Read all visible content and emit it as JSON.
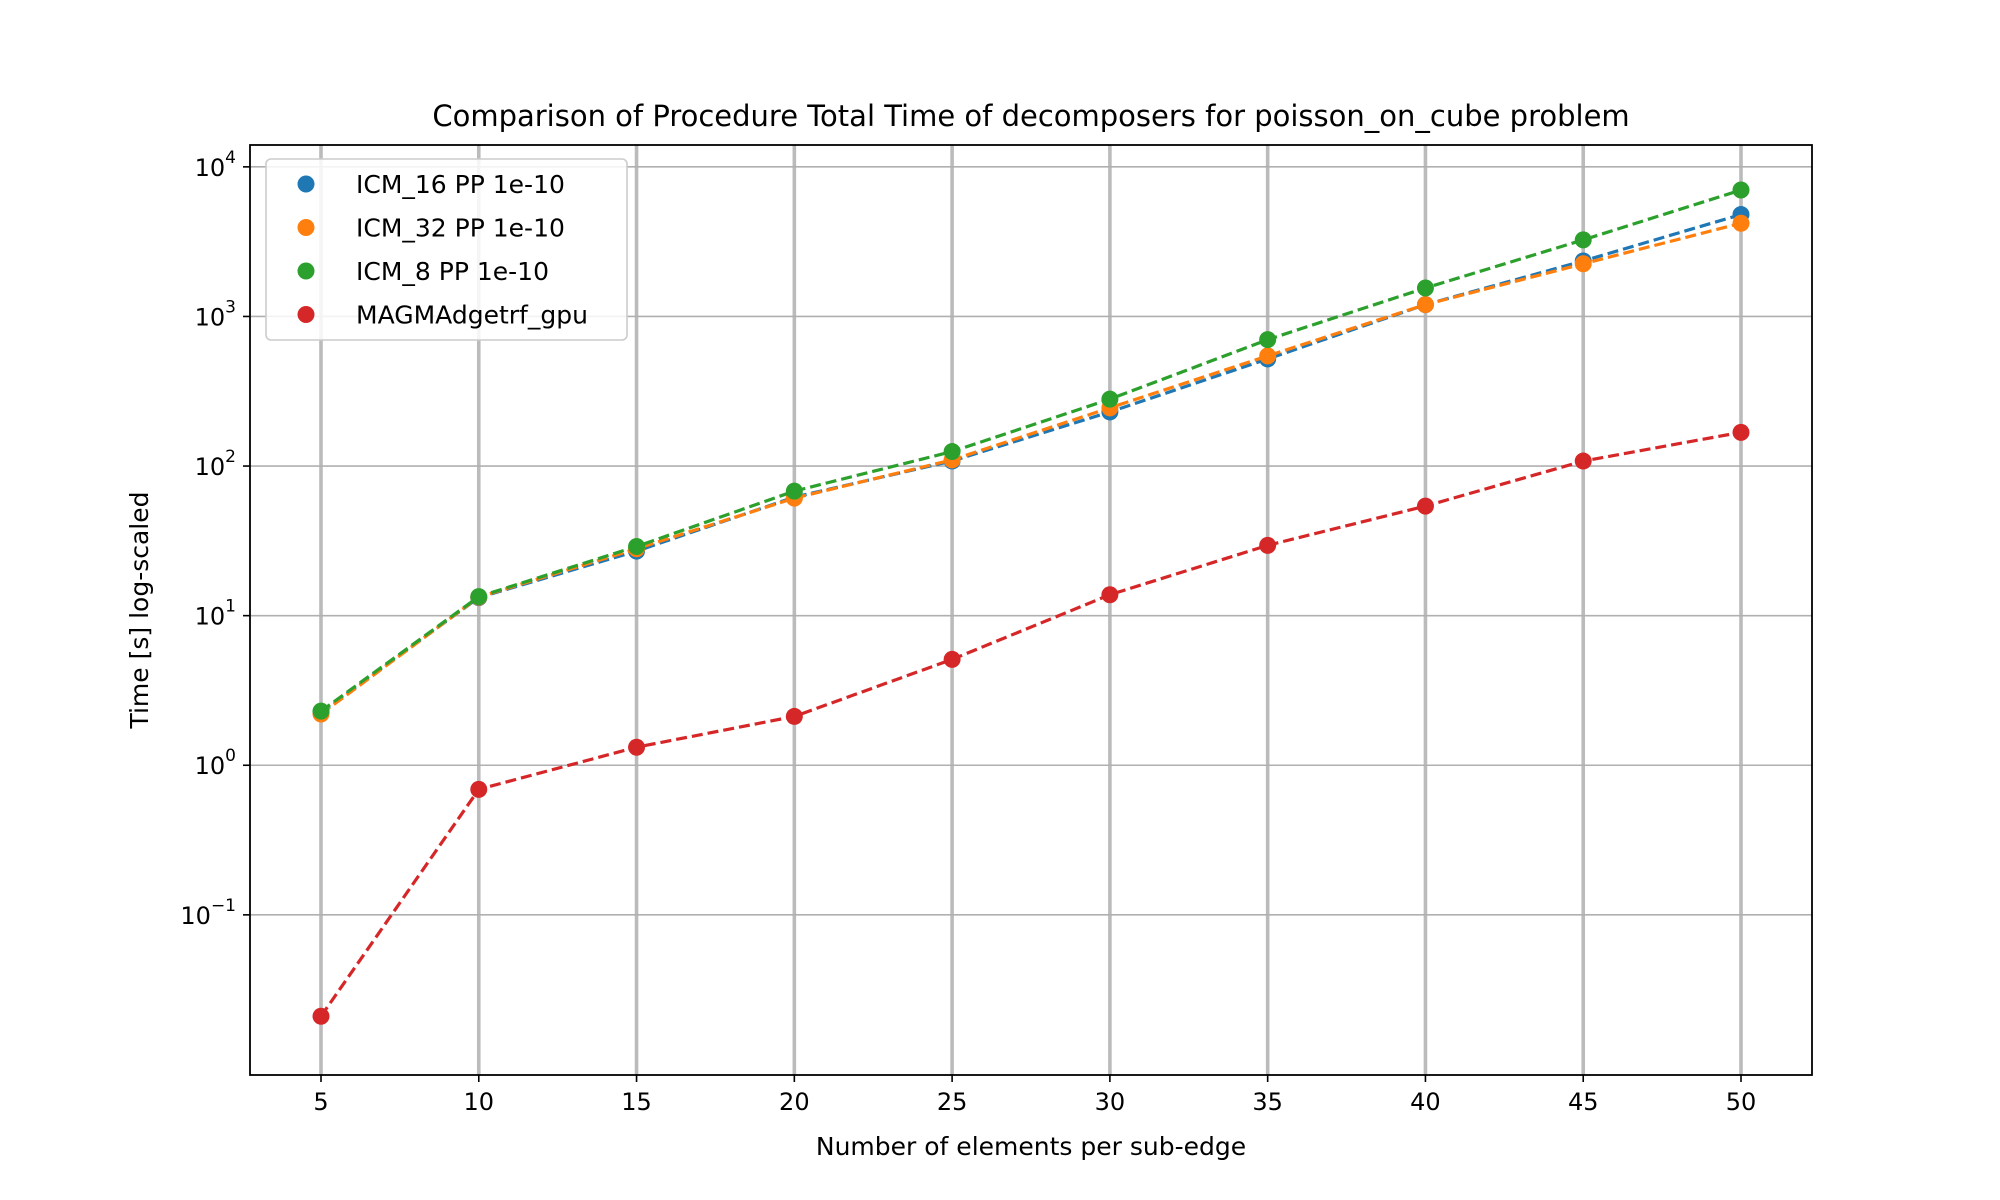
{
  "chart_data": {
    "type": "line",
    "title": "Comparison of Procedure Total Time of decomposers for poisson_on_cube problem",
    "xlabel": "Number of elements per sub-edge",
    "ylabel": "Time [s] log-scaled",
    "yscale": "log",
    "xlim": [
      2.75,
      52.25
    ],
    "ylim": [
      0.0085,
      14000
    ],
    "x_ticks": [
      5,
      10,
      15,
      20,
      25,
      30,
      35,
      40,
      45,
      50
    ],
    "x_tick_labels": [
      "5",
      "10",
      "15",
      "20",
      "25",
      "30",
      "35",
      "40",
      "45",
      "50"
    ],
    "y_ticks": [
      {
        "value": 0.1,
        "base": "10",
        "exp": "−1"
      },
      {
        "value": 1,
        "base": "10",
        "exp": "0"
      },
      {
        "value": 10,
        "base": "10",
        "exp": "1"
      },
      {
        "value": 100,
        "base": "10",
        "exp": "2"
      },
      {
        "value": 1000,
        "base": "10",
        "exp": "3"
      },
      {
        "value": 10000,
        "base": "10",
        "exp": "4"
      }
    ],
    "grid": true,
    "legend_position": "top-left",
    "x": [
      5,
      10,
      15,
      20,
      25,
      30,
      35,
      40,
      45,
      50
    ],
    "series": [
      {
        "name": "ICM_16 PP 1e-10",
        "color": "#1f77b4",
        "values": [
          2.25,
          13.2,
          27,
          62,
          108,
          230,
          520,
          1200,
          2350,
          4800
        ]
      },
      {
        "name": "ICM_32 PP 1e-10",
        "color": "#ff7f0e",
        "values": [
          2.2,
          13.3,
          28,
          61,
          110,
          245,
          545,
          1200,
          2250,
          4200
        ]
      },
      {
        "name": "ICM_8 PP 1e-10",
        "color": "#2ca02c",
        "values": [
          2.3,
          13.4,
          29,
          68,
          125,
          280,
          700,
          1550,
          3250,
          7000
        ]
      },
      {
        "name": "MAGMAdgetrf_gpu",
        "color": "#d62728",
        "values": [
          0.021,
          0.69,
          1.32,
          2.12,
          5.1,
          13.8,
          29.5,
          54,
          108,
          168
        ]
      }
    ]
  }
}
